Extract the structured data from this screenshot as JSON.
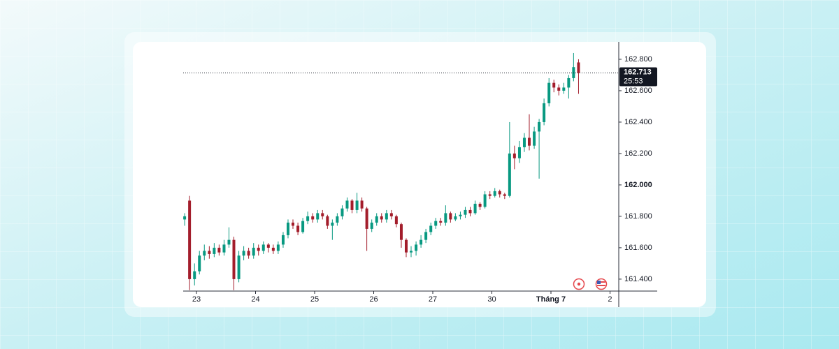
{
  "chart_data": {
    "type": "candlestick",
    "up_color": "#089981",
    "down_color": "#a31d2b",
    "xlim": [
      -0.225,
      7.148
    ],
    "xticks": [
      {
        "value": 0,
        "label": "23"
      },
      {
        "value": 1,
        "label": "24"
      },
      {
        "value": 2,
        "label": "25"
      },
      {
        "value": 3,
        "label": "26"
      },
      {
        "value": 4,
        "label": "27"
      },
      {
        "value": 5,
        "label": "30"
      },
      {
        "value": 6,
        "label": "Tháng 7"
      },
      {
        "value": 7,
        "label": "2"
      }
    ],
    "ylim": [
      161.324,
      162.902
    ],
    "yticks": [
      {
        "value": 161.4,
        "label": "161.400"
      },
      {
        "value": 161.6,
        "label": "161.600"
      },
      {
        "value": 161.8,
        "label": "161.800"
      },
      {
        "value": 162.0,
        "label": "162.000"
      },
      {
        "value": 162.2,
        "label": "162.200"
      },
      {
        "value": 162.4,
        "label": "162.400"
      },
      {
        "value": 162.6,
        "label": "162.600"
      },
      {
        "value": 162.8,
        "label": "162.800"
      }
    ],
    "last_price": 162.713,
    "countdown": "25:53",
    "x": [
      -0.2,
      -0.117,
      -0.033,
      0.05,
      0.133,
      0.217,
      0.3,
      0.383,
      0.467,
      0.55,
      0.633,
      0.717,
      0.8,
      0.883,
      0.967,
      1.05,
      1.133,
      1.217,
      1.3,
      1.383,
      1.467,
      1.55,
      1.633,
      1.717,
      1.8,
      1.883,
      1.967,
      2.05,
      2.133,
      2.217,
      2.3,
      2.383,
      2.467,
      2.55,
      2.633,
      2.717,
      2.8,
      2.883,
      2.967,
      3.05,
      3.133,
      3.217,
      3.3,
      3.383,
      3.467,
      3.55,
      3.633,
      3.717,
      3.8,
      3.883,
      3.967,
      4.05,
      4.133,
      4.217,
      4.3,
      4.383,
      4.467,
      4.55,
      4.633,
      4.717,
      4.8,
      4.883,
      4.967,
      5.05,
      5.133,
      5.217,
      5.3,
      5.383,
      5.467,
      5.55,
      5.633,
      5.717,
      5.8,
      5.883,
      5.967,
      6.05,
      6.133,
      6.217,
      6.3,
      6.383,
      6.467
    ],
    "open": [
      161.78,
      161.9,
      161.4,
      161.45,
      161.55,
      161.58,
      161.56,
      161.6,
      161.57,
      161.62,
      161.65,
      161.4,
      161.55,
      161.58,
      161.55,
      161.6,
      161.58,
      161.62,
      161.6,
      161.58,
      161.62,
      161.68,
      161.76,
      161.74,
      161.7,
      161.77,
      161.8,
      161.78,
      161.82,
      161.8,
      161.74,
      161.76,
      161.8,
      161.85,
      161.9,
      161.84,
      161.9,
      161.85,
      161.72,
      161.76,
      161.8,
      161.78,
      161.82,
      161.8,
      161.75,
      161.65,
      161.57,
      161.58,
      161.62,
      161.65,
      161.7,
      161.74,
      161.77,
      161.76,
      161.82,
      161.78,
      161.8,
      161.81,
      161.84,
      161.82,
      161.88,
      161.86,
      161.94,
      161.93,
      161.96,
      161.94,
      161.93,
      162.2,
      162.17,
      162.24,
      162.3,
      162.25,
      162.34,
      162.4,
      162.52,
      162.65,
      162.62,
      162.6,
      162.62,
      162.68,
      162.78
    ],
    "high": [
      161.82,
      161.93,
      161.5,
      161.58,
      161.62,
      161.61,
      161.63,
      161.62,
      161.65,
      161.73,
      161.67,
      161.58,
      161.61,
      161.6,
      161.63,
      161.62,
      161.64,
      161.63,
      161.62,
      161.64,
      161.7,
      161.78,
      161.78,
      161.76,
      161.79,
      161.83,
      161.82,
      161.84,
      161.84,
      161.81,
      161.78,
      161.82,
      161.87,
      161.92,
      161.91,
      161.95,
      161.92,
      161.86,
      161.78,
      161.82,
      161.82,
      161.84,
      161.84,
      161.81,
      161.76,
      161.66,
      161.61,
      161.64,
      161.68,
      161.72,
      161.76,
      161.79,
      161.79,
      161.87,
      161.83,
      161.82,
      161.83,
      161.86,
      161.86,
      161.9,
      161.89,
      161.96,
      161.96,
      161.98,
      161.97,
      161.95,
      162.4,
      162.25,
      162.28,
      162.33,
      162.45,
      162.37,
      162.42,
      162.55,
      162.68,
      162.67,
      162.64,
      162.65,
      162.7,
      162.84,
      162.8
    ],
    "low": [
      161.74,
      161.33,
      161.36,
      161.43,
      161.52,
      161.53,
      161.54,
      161.55,
      161.55,
      161.6,
      161.33,
      161.38,
      161.52,
      161.53,
      161.53,
      161.55,
      161.56,
      161.57,
      161.56,
      161.56,
      161.6,
      161.66,
      161.72,
      161.68,
      161.69,
      161.75,
      161.76,
      161.76,
      161.78,
      161.72,
      161.65,
      161.74,
      161.78,
      161.83,
      161.82,
      161.82,
      161.83,
      161.58,
      161.7,
      161.74,
      161.76,
      161.76,
      161.78,
      161.73,
      161.6,
      161.54,
      161.54,
      161.55,
      161.6,
      161.63,
      161.68,
      161.72,
      161.74,
      161.74,
      161.76,
      161.77,
      161.78,
      161.79,
      161.8,
      161.81,
      161.84,
      161.85,
      161.91,
      161.92,
      161.92,
      161.91,
      161.92,
      162.1,
      162.14,
      162.21,
      162.22,
      162.23,
      162.04,
      162.38,
      162.5,
      162.59,
      162.57,
      162.58,
      162.55,
      162.66,
      162.58
    ],
    "close": [
      161.8,
      161.4,
      161.45,
      161.55,
      161.58,
      161.56,
      161.6,
      161.57,
      161.62,
      161.65,
      161.4,
      161.55,
      161.58,
      161.55,
      161.6,
      161.58,
      161.62,
      161.6,
      161.58,
      161.62,
      161.68,
      161.76,
      161.74,
      161.7,
      161.77,
      161.8,
      161.78,
      161.82,
      161.8,
      161.74,
      161.76,
      161.8,
      161.85,
      161.9,
      161.84,
      161.9,
      161.85,
      161.72,
      161.76,
      161.8,
      161.78,
      161.82,
      161.8,
      161.75,
      161.65,
      161.57,
      161.58,
      161.62,
      161.65,
      161.7,
      161.74,
      161.77,
      161.76,
      161.82,
      161.78,
      161.8,
      161.81,
      161.84,
      161.82,
      161.88,
      161.86,
      161.94,
      161.93,
      161.96,
      161.94,
      161.93,
      162.2,
      162.17,
      162.24,
      162.3,
      162.25,
      162.34,
      162.4,
      162.52,
      162.65,
      162.62,
      162.6,
      162.62,
      162.68,
      162.75,
      162.713
    ]
  }
}
